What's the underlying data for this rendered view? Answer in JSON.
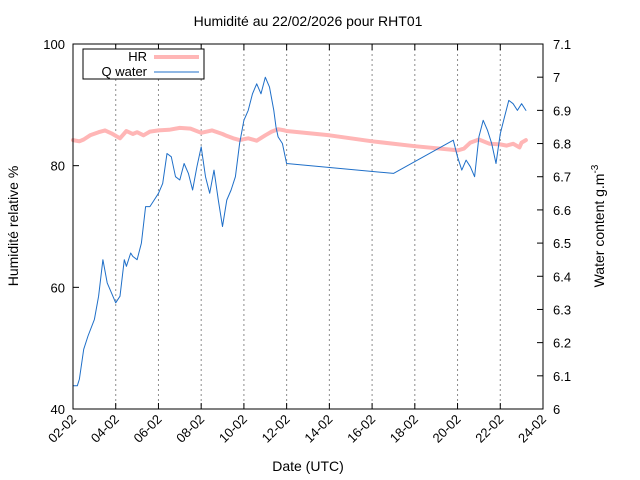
{
  "chart_data": {
    "type": "line",
    "title": "Humidité au 22/02/2026 pour RHT01",
    "xlabel": "Date (UTC)",
    "ylabel": "Humidité relative %",
    "y2label_main": "Water content g.m",
    "y2label_sup": "-3",
    "xlim": [
      0,
      22
    ],
    "ylim": [
      40,
      100
    ],
    "y2lim": [
      6.0,
      7.1
    ],
    "grid": "vertical dashed at x ticks",
    "legend_position": "top-left",
    "x_ticks": [
      {
        "pos": 0,
        "label": "02-02"
      },
      {
        "pos": 2,
        "label": "04-02"
      },
      {
        "pos": 4,
        "label": "06-02"
      },
      {
        "pos": 6,
        "label": "08-02"
      },
      {
        "pos": 8,
        "label": "10-02"
      },
      {
        "pos": 10,
        "label": "12-02"
      },
      {
        "pos": 12,
        "label": "14-02"
      },
      {
        "pos": 14,
        "label": "16-02"
      },
      {
        "pos": 16,
        "label": "18-02"
      },
      {
        "pos": 18,
        "label": "20-02"
      },
      {
        "pos": 20,
        "label": "22-02"
      },
      {
        "pos": 22,
        "label": "24-02"
      }
    ],
    "y_ticks": [
      "40",
      "60",
      "80",
      "100"
    ],
    "y2_ticks": [
      "6",
      "6.1",
      "6.2",
      "6.3",
      "6.4",
      "6.5",
      "6.6",
      "6.7",
      "6.8",
      "6.9",
      "7",
      "7.1"
    ],
    "series": [
      {
        "name": "HR",
        "axis": "left",
        "color": "#ffb6b6",
        "x": [
          0.0,
          0.3,
          0.5,
          0.8,
          1.2,
          1.5,
          1.8,
          2.2,
          2.5,
          2.8,
          3.0,
          3.3,
          3.6,
          4.0,
          4.5,
          5.0,
          5.5,
          6.0,
          6.5,
          7.0,
          7.2,
          7.5,
          7.8,
          8.2,
          8.6,
          9.0,
          9.3,
          9.6,
          9.9,
          10.0,
          12.0,
          14.0,
          16.0,
          17.8,
          18.0,
          18.3,
          18.6,
          19.0,
          19.5,
          20.0,
          20.3,
          20.6,
          20.9,
          21.0,
          21.2
        ],
        "y": [
          84.2,
          84.0,
          84.3,
          85.0,
          85.5,
          85.8,
          85.3,
          84.5,
          85.7,
          85.2,
          85.5,
          85.0,
          85.6,
          85.8,
          85.9,
          86.2,
          86.1,
          85.4,
          85.8,
          85.2,
          84.9,
          84.5,
          84.2,
          84.5,
          84.1,
          85.0,
          85.6,
          86.0,
          85.8,
          85.7,
          85.0,
          84.0,
          83.2,
          82.6,
          82.5,
          82.8,
          83.8,
          84.3,
          83.6,
          83.5,
          83.3,
          83.6,
          83.0,
          83.8,
          84.2
        ]
      },
      {
        "name": "Q water",
        "axis": "right",
        "color": "#1f6fc8",
        "x": [
          0.0,
          0.2,
          0.3,
          0.5,
          0.7,
          1.0,
          1.2,
          1.4,
          1.6,
          1.8,
          2.0,
          2.2,
          2.4,
          2.5,
          2.7,
          2.8,
          3.0,
          3.2,
          3.4,
          3.6,
          3.8,
          4.0,
          4.2,
          4.4,
          4.6,
          4.8,
          5.0,
          5.2,
          5.4,
          5.6,
          5.8,
          6.0,
          6.2,
          6.4,
          6.6,
          6.8,
          7.0,
          7.2,
          7.4,
          7.6,
          7.8,
          8.0,
          8.2,
          8.4,
          8.6,
          8.8,
          9.0,
          9.2,
          9.4,
          9.5,
          9.6,
          9.8,
          10.0,
          15.0,
          17.8,
          18.0,
          18.2,
          18.4,
          18.6,
          18.8,
          19.0,
          19.2,
          19.4,
          19.6,
          19.8,
          20.0,
          20.2,
          20.4,
          20.6,
          20.8,
          21.0,
          21.2
        ],
        "y": [
          6.07,
          6.07,
          6.09,
          6.18,
          6.22,
          6.27,
          6.34,
          6.45,
          6.38,
          6.35,
          6.32,
          6.34,
          6.45,
          6.43,
          6.47,
          6.46,
          6.45,
          6.5,
          6.61,
          6.61,
          6.63,
          6.65,
          6.68,
          6.77,
          6.76,
          6.7,
          6.69,
          6.74,
          6.71,
          6.66,
          6.73,
          6.79,
          6.7,
          6.65,
          6.72,
          6.63,
          6.55,
          6.63,
          6.66,
          6.7,
          6.8,
          6.87,
          6.9,
          6.95,
          6.98,
          6.95,
          7.0,
          6.97,
          6.9,
          6.85,
          6.82,
          6.8,
          6.74,
          6.71,
          6.81,
          6.76,
          6.72,
          6.75,
          6.73,
          6.7,
          6.82,
          6.87,
          6.84,
          6.8,
          6.74,
          6.83,
          6.88,
          6.93,
          6.92,
          6.9,
          6.92,
          6.9
        ]
      }
    ]
  }
}
